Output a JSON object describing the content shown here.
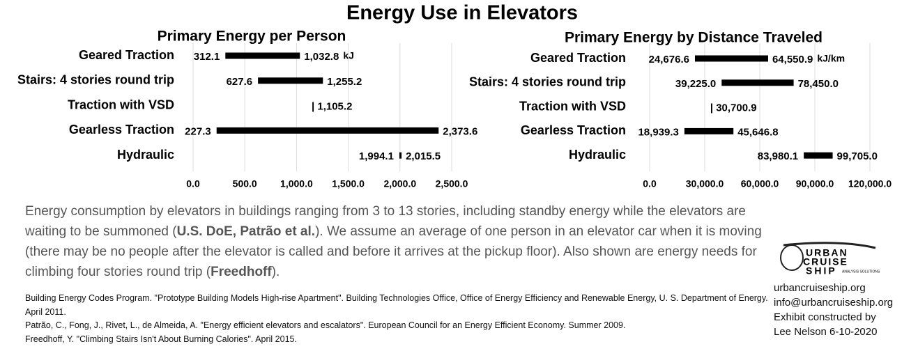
{
  "title": "Energy Use in Elevators",
  "chart_data": [
    {
      "type": "range-bar",
      "title": "Primary Energy per Person",
      "unit": "kJ",
      "color": "#000000",
      "grid": true,
      "categories": [
        "Geared Traction",
        "Stairs: 4 stories round trip",
        "Traction with VSD",
        "Gearless Traction",
        "Hydraulic"
      ],
      "low": [
        312.1,
        627.6,
        null,
        227.3,
        1994.1
      ],
      "low_labels": [
        "312.1",
        "627.6",
        null,
        "227.3",
        "1,994.1"
      ],
      "high": [
        1032.8,
        1255.2,
        1105.2,
        2373.6,
        2015.5
      ],
      "high_labels": [
        "1,032.8",
        "1,255.2",
        "| 1,105.2",
        "2,373.6",
        "2,015.5"
      ],
      "xlim": [
        0,
        2500
      ],
      "xticks": [
        {
          "value": 0,
          "label": "0.0"
        },
        {
          "value": 500,
          "label": "500.0"
        },
        {
          "value": 1000,
          "label": "1,000.0"
        },
        {
          "value": 1500,
          "label": "1,500.0"
        },
        {
          "value": 2000,
          "label": "2,000.0"
        },
        {
          "value": 2500,
          "label": "2,500.0"
        }
      ]
    },
    {
      "type": "range-bar",
      "title": "Primary Energy by Distance Traveled",
      "unit": "kJ/km",
      "color": "#000000",
      "grid": true,
      "categories": [
        "Geared Traction",
        "Stairs: 4 stories round trip",
        "Traction with VSD",
        "Gearless Traction",
        "Hydraulic"
      ],
      "low": [
        24676.6,
        39225.0,
        null,
        18939.3,
        83980.1
      ],
      "low_labels": [
        "24,676.6",
        "39,225.0",
        null,
        "18,939.3",
        "83,980.1"
      ],
      "high": [
        64550.9,
        78450.0,
        30700.9,
        45646.8,
        99705.0
      ],
      "high_labels": [
        "64,550.9",
        "78,450.0",
        "| 30,700.9",
        "45,646.8",
        "99,705.0"
      ],
      "xlim": [
        0,
        120000
      ],
      "xticks": [
        {
          "value": 0,
          "label": "0.0"
        },
        {
          "value": 30000,
          "label": "30,000.0"
        },
        {
          "value": 60000,
          "label": "60,000.0"
        },
        {
          "value": 90000,
          "label": "90,000.0"
        },
        {
          "value": 120000,
          "label": "120,000.0"
        }
      ]
    }
  ],
  "description": [
    {
      "text": "Energy consumption by elevators in buildings ranging from 3 to 13 stories, including standby energy while the elevators are waiting to be summoned (",
      "bold": false
    },
    {
      "text": "U.S. DoE, Patrão et al.",
      "bold": true
    },
    {
      "text": "). We assume an average of one person in an elevator car when it is moving (there may be no people after the elevator is called and before it arrives at the pickup floor). Also shown are energy needs for climbing four stories round trip (",
      "bold": false
    },
    {
      "text": "Freedhoff",
      "bold": true
    },
    {
      "text": ").",
      "bold": false
    }
  ],
  "references": [
    "Building Energy Codes Program. \"Prototype Building Models High-rise Apartment\". Building Technologies Office, Office of Energy Efficiency and Renewable Energy, U. S. Department of Energy. April 2011.",
    "Patrão, C., Fong, J., Rivet, L., de Almeida, A. \"Energy efficient elevators and escalators\". European Council for an Energy Efficient Economy. Summer 2009.",
    "Freedhoff, Y. \"Climbing Stairs Isn't About Burning Calories\". April 2015."
  ],
  "logo": {
    "line1": "URBAN",
    "line2": "CRUISE",
    "line3": "SHIP",
    "tag": "ANALYSIS SOLUTIONS"
  },
  "contact": [
    "urbancruiseship.org",
    "info@urbancruiseship.org",
    "Exhibit constructed by",
    "Lee Nelson 6-10-2020"
  ]
}
